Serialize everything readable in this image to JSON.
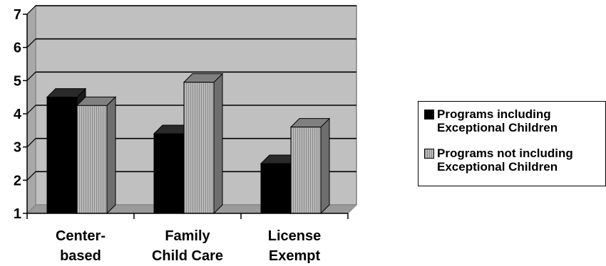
{
  "chart_data": {
    "type": "bar",
    "categories": [
      [
        "Center-",
        "based"
      ],
      [
        "Family",
        "Child Care"
      ],
      [
        "License",
        "Exempt"
      ]
    ],
    "series": [
      {
        "name": [
          "Programs including",
          "Exceptional Children"
        ],
        "values": [
          4.5,
          3.4,
          2.5
        ]
      },
      {
        "name": [
          "Programs not including",
          "Exceptional Children"
        ],
        "values": [
          4.25,
          4.95,
          3.6
        ]
      }
    ],
    "ylim": [
      1,
      7
    ],
    "yticks": [
      "1",
      "2",
      "3",
      "4",
      "5",
      "6",
      "7"
    ],
    "grid": true,
    "legend_position": "right",
    "colors": {
      "plot_bg": "#c0c0c0",
      "floor": "#9a9a9a",
      "series1_front": "#000000",
      "series1_side": "#1a1a1a",
      "series1_top": "#2a2a2a",
      "series2_front": "#b4b4b4",
      "series2_side": "#6e6e6e",
      "series2_top": "#808080",
      "axis": "#808080"
    }
  }
}
